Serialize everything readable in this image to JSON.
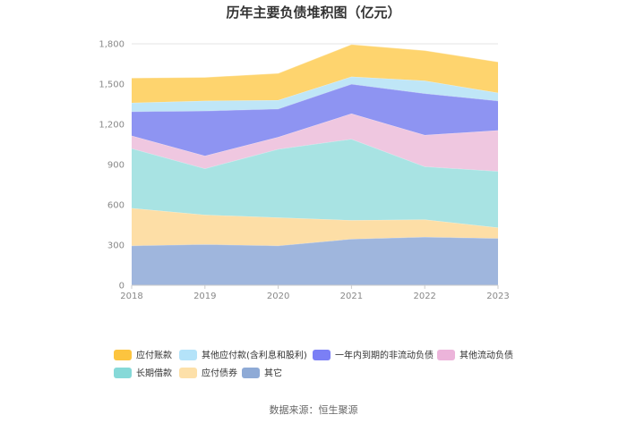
{
  "chart_data": {
    "type": "area",
    "stacked": true,
    "title": "历年主要负债堆积图（亿元）",
    "source": "数据来源：恒生聚源",
    "x": [
      "2018",
      "2019",
      "2020",
      "2021",
      "2022",
      "2023"
    ],
    "ylim": [
      0,
      1800
    ],
    "yticks": [
      "0",
      "300",
      "600",
      "900",
      "1,200",
      "1,500",
      "1,800"
    ],
    "ytick_values": [
      0,
      300,
      600,
      900,
      1200,
      1500,
      1800
    ],
    "grid": true,
    "legend_position": "bottom",
    "series": [
      {
        "name": "其它",
        "color": "#9fb6dd",
        "values": [
          295,
          305,
          295,
          345,
          360,
          350
        ]
      },
      {
        "name": "应付债券",
        "color": "#fddea6",
        "values": [
          280,
          220,
          210,
          140,
          130,
          80
        ]
      },
      {
        "name": "长期借款",
        "color": "#a8e3e3",
        "values": [
          445,
          345,
          510,
          605,
          395,
          420
        ]
      },
      {
        "name": "其他流动负债",
        "color": "#efc7e0",
        "values": [
          95,
          95,
          90,
          190,
          235,
          305
        ]
      },
      {
        "name": "一年内到期的非流动负债",
        "color": "#8e94f2",
        "values": [
          180,
          335,
          210,
          220,
          310,
          220
        ]
      },
      {
        "name": "其他应付款(含利息和股利)",
        "color": "#bfe6f7",
        "values": [
          65,
          75,
          65,
          55,
          95,
          60
        ]
      },
      {
        "name": "应付账款",
        "color": "#fed46e",
        "values": [
          185,
          175,
          200,
          240,
          225,
          230
        ]
      }
    ],
    "legend_order": [
      "应付账款",
      "其他应付款(含利息和股利)",
      "一年内到期的非流动负债",
      "其他流动负债",
      "长期借款",
      "应付债券",
      "其它"
    ],
    "legend_colors": {
      "应付账款": "#fcc43f",
      "其他应付款(含利息和股利)": "#b4e3f9",
      "一年内到期的非流动负债": "#7b7ff5",
      "其他流动负债": "#ecb4da",
      "长期借款": "#86d9d8",
      "应付债券": "#fde0a9",
      "其它": "#8eaad6"
    }
  }
}
